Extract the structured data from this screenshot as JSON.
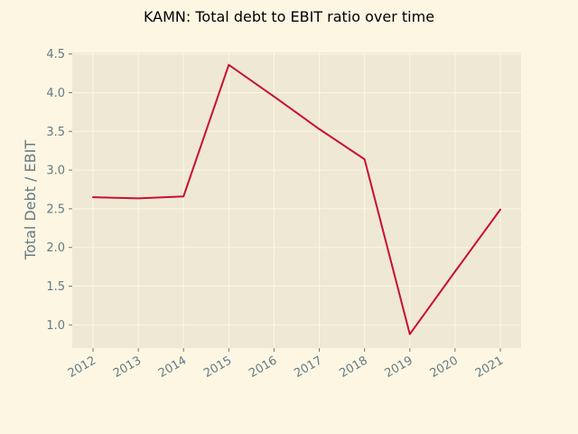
{
  "chart_data": {
    "type": "line",
    "title": "KAMN: Total debt to EBIT ratio over time",
    "xlabel": "",
    "ylabel": "Total Debt / EBIT",
    "categories": [
      "2012",
      "2013",
      "2014",
      "2015",
      "2016",
      "2017",
      "2018",
      "2019",
      "2020",
      "2021"
    ],
    "series": [
      {
        "name": "Total Debt / EBIT",
        "values": [
          2.65,
          2.635,
          2.66,
          4.36,
          3.95,
          3.53,
          3.14,
          0.88,
          1.69,
          2.49
        ]
      }
    ],
    "ylim": [
      0.7,
      4.52
    ],
    "yticks": [
      "1.0",
      "1.5",
      "2.0",
      "2.5",
      "3.0",
      "3.5",
      "4.0",
      "4.5"
    ],
    "grid": true,
    "colors": {
      "figure_bg": "#fdf6e3",
      "axes_bg": "#eee8d5",
      "grid": "#fdf6e3",
      "line": "#c8102e",
      "tick_text": "#657b83",
      "title_text": "#000000"
    }
  }
}
